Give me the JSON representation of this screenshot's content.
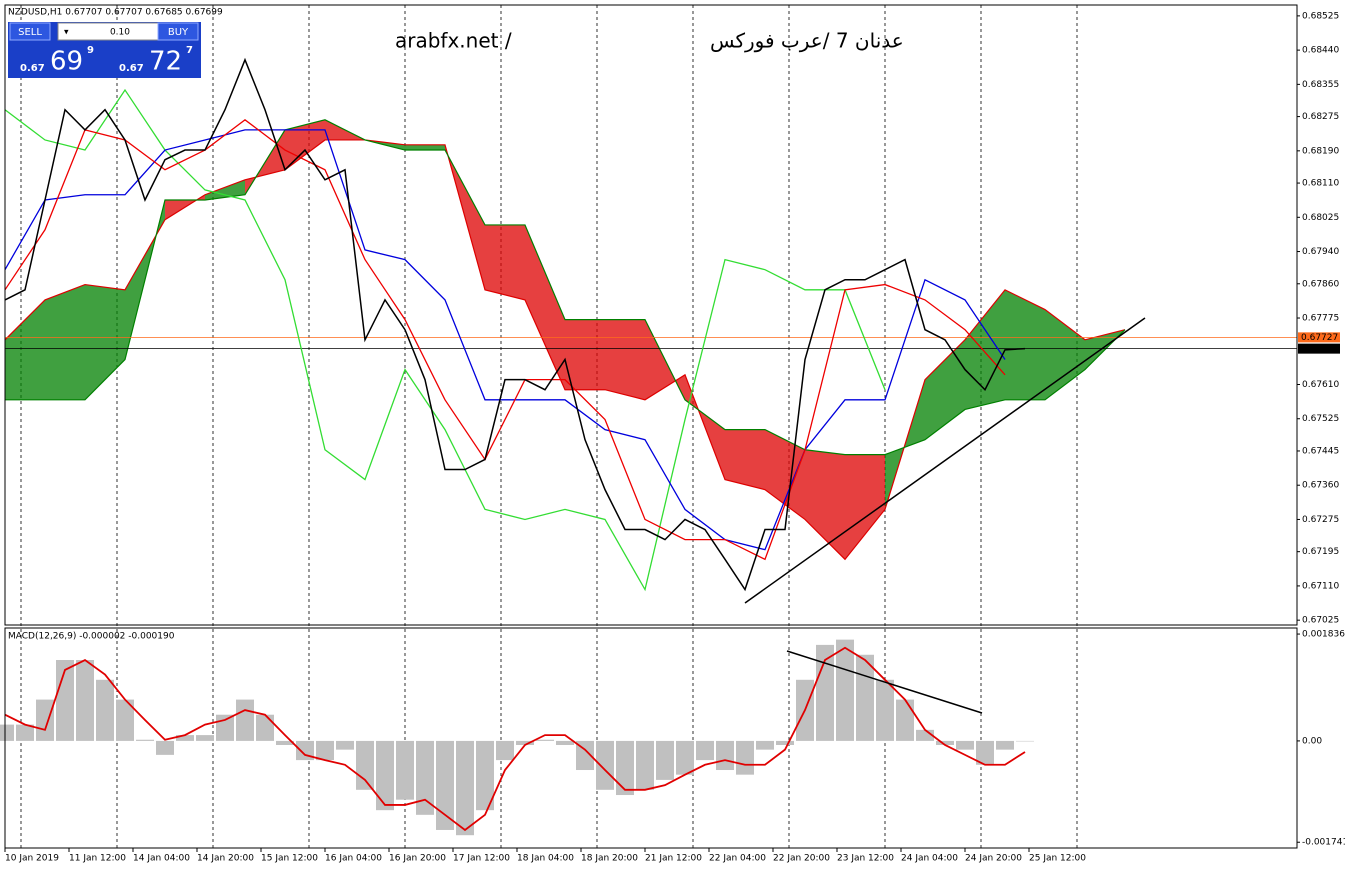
{
  "header": {
    "symbol_info": "NZDUSD,H1  0.67707 0.67707 0.67685 0.67699"
  },
  "trade_panel": {
    "sell": "SELL",
    "buy": "BUY",
    "lot": "0.10",
    "sell_price": {
      "big": "0.67",
      "pips": "69",
      "point": "9"
    },
    "buy_price": {
      "big": "0.67",
      "pips": "72",
      "point": "7"
    }
  },
  "watermark": [
    "arabfx.net /",
    "عدنان 7 /عرب فوركس"
  ],
  "chart_data": [
    {
      "type": "ichimoku",
      "xlim": [
        0,
        323
      ],
      "ylim": [
        0.67013,
        0.68552
      ],
      "yticks": [
        0.68525,
        {
          "value": 0.6844,
          "label": "0.68440"
        },
        0.68355,
        0.68275,
        {
          "value": 0.6819,
          "label": "0.68190"
        },
        {
          "value": 0.6811,
          "label": "0.68110"
        },
        0.68025,
        {
          "value": 0.6794,
          "label": "0.67940"
        },
        {
          "value": 0.6786,
          "label": "0.67860"
        },
        0.67775,
        {
          "value": 0.6761,
          "label": "0.67610"
        },
        0.67525,
        0.67445,
        {
          "value": 0.6736,
          "label": "0.67360"
        },
        0.67275,
        0.67195,
        {
          "value": 0.6711,
          "label": "0.67110"
        },
        0.67025
      ],
      "xticks": [
        {
          "value": 0,
          "label": "10 Jan 2019"
        },
        {
          "value": 16,
          "label": "11 Jan 12:00"
        },
        {
          "value": 32,
          "label": "14 Jan 04:00"
        },
        {
          "value": 48,
          "label": "14 Jan 20:00"
        },
        {
          "value": 64,
          "label": "15 Jan 12:00"
        },
        {
          "value": 80,
          "label": "16 Jan 04:00"
        },
        {
          "value": 96,
          "label": "16 Jan 20:00"
        },
        {
          "value": 112,
          "label": "17 Jan 12:00"
        },
        {
          "value": 128,
          "label": "18 Jan 04:00"
        },
        {
          "value": 144,
          "label": "18 Jan 20:00"
        },
        {
          "value": 160,
          "label": "21 Jan 12:00"
        },
        {
          "value": 176,
          "label": "22 Jan 04:00"
        },
        {
          "value": 192,
          "label": "22 Jan 20:00"
        },
        {
          "value": 208,
          "label": "23 Jan 12:00"
        },
        {
          "value": 224,
          "label": "24 Jan 04:00"
        },
        {
          "value": 240,
          "label": "24 Jan 20:00"
        },
        {
          "value": 256,
          "label": "25 Jan 12:00"
        }
      ],
      "separators": [
        4,
        28,
        52,
        76,
        100,
        124,
        148,
        172,
        196,
        220,
        244,
        268
      ],
      "cloud": {
        "up_color": "#008000",
        "down_color": "#dd0000",
        "x": [
          0,
          10,
          20,
          30,
          40,
          50,
          60,
          70,
          80,
          90,
          100,
          110,
          120,
          130,
          140,
          150,
          160,
          170,
          180,
          190,
          200,
          210,
          220,
          230,
          240,
          250,
          260,
          270,
          280
        ],
        "span_a": [
          0.67721,
          0.6782,
          0.67858,
          0.67845,
          0.68019,
          0.68081,
          0.68118,
          0.68143,
          0.68217,
          0.68217,
          0.68205,
          0.68205,
          0.67845,
          0.6782,
          0.67597,
          0.67597,
          0.67572,
          0.67634,
          0.67374,
          0.67349,
          0.67275,
          0.67176,
          0.673,
          0.67622,
          0.67721,
          0.67845,
          0.67796,
          0.67721,
          0.67746
        ],
        "span_b": [
          0.67572,
          0.67572,
          0.67572,
          0.67672,
          0.68068,
          0.68068,
          0.68081,
          0.68242,
          0.68267,
          0.68217,
          0.68192,
          0.68192,
          0.68006,
          0.68006,
          0.67771,
          0.67771,
          0.67771,
          0.67572,
          0.67498,
          0.67498,
          0.67448,
          0.67436,
          0.67436,
          0.67473,
          0.67548,
          0.67572,
          0.67572,
          0.67647,
          0.67746
        ]
      },
      "series": [
        {
          "color": "#33dd33",
          "x": [
            0,
            10,
            20,
            30,
            40,
            50,
            60,
            70,
            80,
            90,
            100,
            110,
            120,
            130,
            140,
            150,
            160,
            170,
            180,
            190,
            200,
            210,
            220
          ],
          "values": [
            0.68292,
            0.68217,
            0.68192,
            0.68341,
            0.68192,
            0.68093,
            0.68068,
            0.6787,
            0.67448,
            0.67374,
            0.67647,
            0.67498,
            0.673,
            0.67275,
            0.673,
            0.67275,
            0.67101,
            0.67523,
            0.6792,
            0.67895,
            0.67845,
            0.67845,
            0.67597
          ]
        },
        {
          "color": "#0000dd",
          "x": [
            0,
            10,
            20,
            30,
            40,
            50,
            60,
            70,
            80,
            90,
            100,
            110,
            120,
            130,
            140,
            150,
            160,
            170,
            180,
            190,
            200,
            210,
            220,
            230,
            240,
            250
          ],
          "values": [
            0.67895,
            0.68068,
            0.68081,
            0.68081,
            0.68192,
            0.68217,
            0.68242,
            0.68242,
            0.68242,
            0.67944,
            0.6792,
            0.6782,
            0.67572,
            0.67572,
            0.67572,
            0.67498,
            0.67473,
            0.673,
            0.67225,
            0.672,
            0.67448,
            0.67572,
            0.67572,
            0.6787,
            0.6782,
            0.67672
          ]
        },
        {
          "color": "#ee0000",
          "x": [
            0,
            10,
            20,
            30,
            40,
            50,
            60,
            70,
            80,
            90,
            100,
            110,
            120,
            130,
            140,
            150,
            160,
            170,
            180,
            190,
            200,
            210,
            220,
            230,
            240,
            250
          ],
          "values": [
            0.67845,
            0.67994,
            0.68242,
            0.68217,
            0.68143,
            0.68192,
            0.68267,
            0.68192,
            0.68143,
            0.6792,
            0.67771,
            0.67572,
            0.67424,
            0.67622,
            0.67622,
            0.67523,
            0.67275,
            0.67225,
            0.67225,
            0.67176,
            0.67448,
            0.67845,
            0.67858,
            0.6782,
            0.67746,
            0.67634
          ]
        },
        {
          "color": "#000000",
          "x": [
            0,
            5,
            10,
            15,
            20,
            25,
            30,
            35,
            40,
            45,
            50,
            55,
            60,
            65,
            70,
            75,
            80,
            85,
            90,
            95,
            100,
            105,
            110,
            115,
            120,
            125,
            130,
            135,
            140,
            145,
            150,
            155,
            160,
            165,
            170,
            175,
            180,
            185,
            190,
            195,
            200,
            205,
            210,
            215,
            220,
            225,
            230,
            235,
            240,
            245,
            250,
            255
          ],
          "values": [
            0.6782,
            0.67845,
            0.68068,
            0.68292,
            0.68242,
            0.68292,
            0.68217,
            0.68068,
            0.68168,
            0.68192,
            0.68192,
            0.68292,
            0.68416,
            0.68292,
            0.68143,
            0.68192,
            0.68118,
            0.68143,
            0.67721,
            0.6782,
            0.67746,
            0.67622,
            0.67399,
            0.67399,
            0.67424,
            0.67622,
            0.67622,
            0.67597,
            0.67672,
            0.67473,
            0.67349,
            0.6725,
            0.6725,
            0.67225,
            0.67275,
            0.6725,
            0.67176,
            0.67101,
            0.6725,
            0.6725,
            0.67672,
            0.67845,
            0.6787,
            0.6787,
            0.67895,
            0.6792,
            0.67746,
            0.67721,
            0.67647,
            0.67597,
            0.67696,
            0.67699
          ]
        }
      ],
      "price_lines": [
        {
          "value": 0.67727,
          "color": "#ff6a1a"
        },
        {
          "value": 0.67699,
          "color": "#000000"
        }
      ]
    },
    {
      "type": "macd",
      "title": "MACD(12,26,9) -0.000002 -0.000190",
      "ylim": [
        -0.00184,
        0.00194
      ],
      "yticks": [
        0.001836,
        {
          "value": 0,
          "label": "0.00"
        },
        -0.001741
      ],
      "x": [
        0,
        5,
        10,
        15,
        20,
        25,
        30,
        35,
        40,
        45,
        50,
        55,
        60,
        65,
        70,
        75,
        80,
        85,
        90,
        95,
        100,
        105,
        110,
        115,
        120,
        125,
        130,
        135,
        140,
        145,
        150,
        155,
        160,
        165,
        170,
        175,
        180,
        185,
        190,
        195,
        200,
        205,
        210,
        215,
        220,
        225,
        230,
        235,
        240,
        245,
        250,
        255
      ],
      "histogram": {
        "color": "#c0c0c0",
        "values": [
          0.00028,
          0.00028,
          0.00071,
          0.00139,
          0.00139,
          0.00105,
          0.00071,
          2e-05,
          -0.00024,
          0.0001,
          0.0001,
          0.00045,
          0.00071,
          0.00045,
          -7e-05,
          -0.00033,
          -0.00033,
          -0.00015,
          -0.00084,
          -0.00119,
          -0.00101,
          -0.00127,
          -0.00153,
          -0.00162,
          -0.00119,
          -0.00033,
          -7e-05,
          2e-05,
          -7e-05,
          -0.0005,
          -0.00084,
          -0.00093,
          -0.00084,
          -0.00067,
          -0.00058,
          -0.00033,
          -0.0005,
          -0.00058,
          -0.00015,
          -7e-05,
          0.00105,
          0.00165,
          0.00174,
          0.00148,
          0.00105,
          0.00071,
          0.00019,
          -7e-05,
          -0.00015,
          -0.00041,
          -0.00015,
          -2e-06
        ]
      },
      "signal": {
        "color": "#e00000",
        "values": [
          0.00045,
          0.00028,
          0.00019,
          0.00122,
          0.00139,
          0.00114,
          0.00071,
          0.00036,
          2e-05,
          0.0001,
          0.00028,
          0.00036,
          0.00053,
          0.00045,
          0.0001,
          -0.00024,
          -0.00033,
          -0.00041,
          -0.00067,
          -0.0011,
          -0.0011,
          -0.00101,
          -0.00127,
          -0.00153,
          -0.00127,
          -0.0005,
          -7e-05,
          0.0001,
          0.0001,
          -0.00015,
          -0.0005,
          -0.00084,
          -0.00084,
          -0.00076,
          -0.00058,
          -0.00041,
          -0.00033,
          -0.00041,
          -0.00041,
          -0.00015,
          0.00053,
          0.00139,
          0.0016,
          0.00139,
          0.00105,
          0.00071,
          0.00019,
          -7e-05,
          -0.00024,
          -0.00041,
          -0.00041,
          -0.00019
        ]
      }
    }
  ]
}
